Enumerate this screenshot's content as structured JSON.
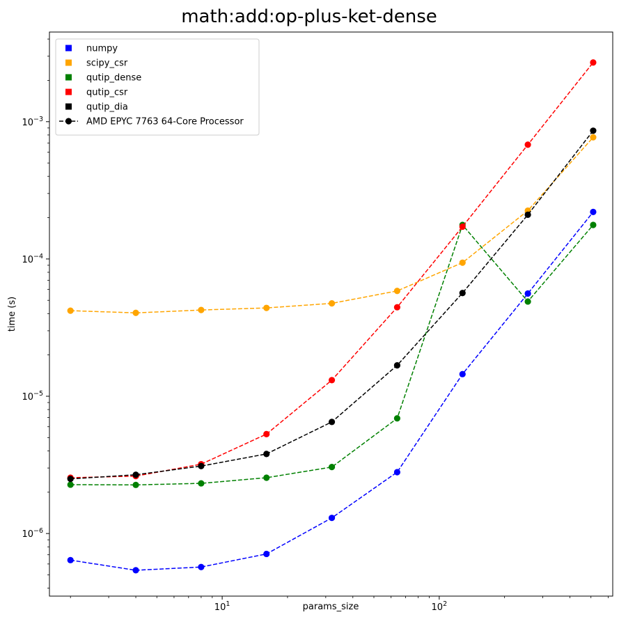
{
  "chart_data": {
    "type": "line",
    "title": "math:add:op-plus-ket-dense",
    "xlabel": "params_size",
    "ylabel": "time (s)",
    "xscale": "log",
    "yscale": "log",
    "xlim": [
      1.6,
      630
    ],
    "ylim": [
      3.5e-07,
      0.0045
    ],
    "grid": false,
    "legend_position": "top-left",
    "x_ticks": [
      {
        "value": 10,
        "base": "10",
        "exp": "1"
      },
      {
        "value": 100,
        "base": "10",
        "exp": "2"
      }
    ],
    "y_ticks": [
      {
        "value": 1e-06,
        "base": "10",
        "exp": "−6"
      },
      {
        "value": 1e-05,
        "base": "10",
        "exp": "−5"
      },
      {
        "value": 0.0001,
        "base": "10",
        "exp": "−4"
      },
      {
        "value": 0.001,
        "base": "10",
        "exp": "−3"
      }
    ],
    "x": [
      2,
      4,
      8,
      16,
      32,
      64,
      128,
      256,
      512
    ],
    "series": [
      {
        "name": "numpy",
        "color": "#0000ff",
        "values": [
          6.4e-07,
          5.4e-07,
          5.7e-07,
          7.1e-07,
          1.3e-06,
          2.8e-06,
          1.45e-05,
          5.6e-05,
          0.00022
        ]
      },
      {
        "name": "scipy_csr",
        "color": "#ffa500",
        "values": [
          4.2e-05,
          4.05e-05,
          4.25e-05,
          4.4e-05,
          4.75e-05,
          5.85e-05,
          9.4e-05,
          0.000225,
          0.00077
        ]
      },
      {
        "name": "qutip_dense",
        "color": "#008000",
        "values": [
          2.27e-06,
          2.26e-06,
          2.32e-06,
          2.55e-06,
          3.05e-06,
          6.9e-06,
          0.000177,
          4.9e-05,
          0.000177
        ]
      },
      {
        "name": "qutip_csr",
        "color": "#ff0000",
        "values": [
          2.55e-06,
          2.62e-06,
          3.2e-06,
          5.3e-06,
          1.31e-05,
          4.45e-05,
          0.000172,
          0.00068,
          0.0027
        ]
      },
      {
        "name": "qutip_dia",
        "color": "#000000",
        "values": [
          2.5e-06,
          2.68e-06,
          3.1e-06,
          3.8e-06,
          6.5e-06,
          1.68e-05,
          5.65e-05,
          0.00021,
          0.00086
        ]
      }
    ],
    "legend_entries": [
      {
        "label": "numpy",
        "color": "#0000ff",
        "kind": "square"
      },
      {
        "label": "scipy_csr",
        "color": "#ffa500",
        "kind": "square"
      },
      {
        "label": "qutip_dense",
        "color": "#008000",
        "kind": "square"
      },
      {
        "label": "qutip_csr",
        "color": "#ff0000",
        "kind": "square"
      },
      {
        "label": "qutip_dia",
        "color": "#000000",
        "kind": "square"
      },
      {
        "label": "AMD EPYC 7763 64-Core Processor",
        "color": "#000000",
        "kind": "line-marker"
      }
    ]
  }
}
